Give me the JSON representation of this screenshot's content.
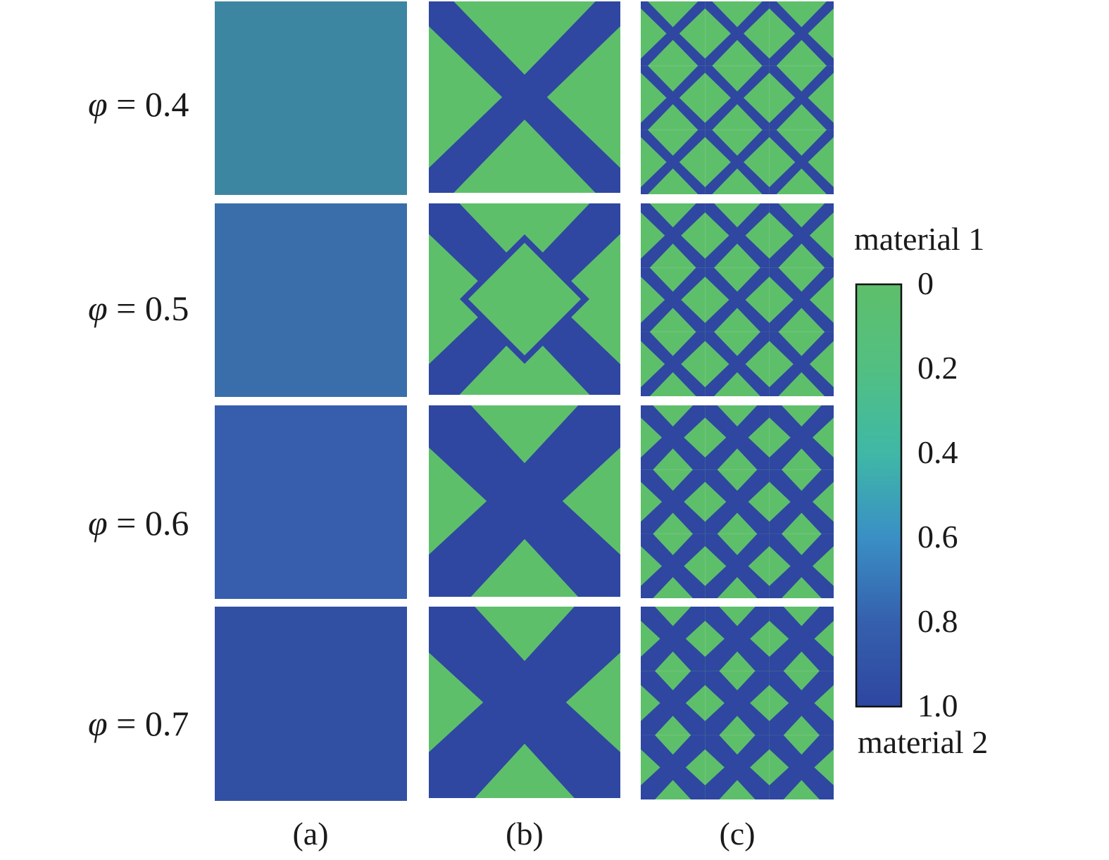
{
  "rows": [
    {
      "symbol": "φ",
      "eq": " = 0.4",
      "uniform_fill": "#3d86a2"
    },
    {
      "symbol": "φ",
      "eq": " = 0.5",
      "uniform_fill": "#3a6eab"
    },
    {
      "symbol": "φ",
      "eq": " = 0.6",
      "uniform_fill": "#365ead"
    },
    {
      "symbol": "φ",
      "eq": " = 0.7",
      "uniform_fill": "#3250a3"
    }
  ],
  "columns": [
    {
      "label": "(a)"
    },
    {
      "label": "(b)"
    },
    {
      "label": "(c)"
    }
  ],
  "colorbar": {
    "top_label": "material 1",
    "bottom_label": "material 2",
    "ticks": [
      "0",
      "0.2",
      "0.4",
      "0.6",
      "0.8",
      "1.0"
    ],
    "colors": [
      "#5ebf6b",
      "#52bf82",
      "#3fb8a6",
      "#3a8fc5",
      "#3560ad",
      "#2e46a0"
    ]
  },
  "palette": {
    "material_1": "#5ebf6b",
    "material_2": "#2f47a1"
  }
}
